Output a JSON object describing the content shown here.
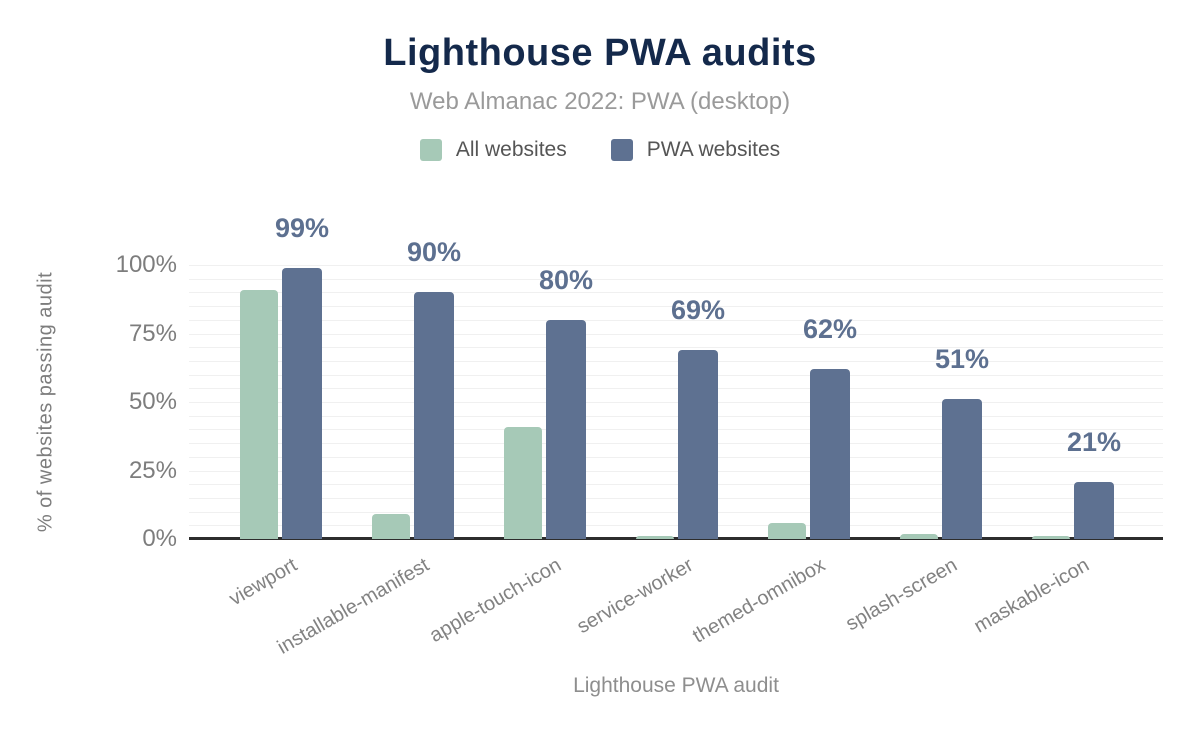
{
  "header": {
    "title": "Lighthouse PWA audits",
    "subtitle": "Web Almanac 2022: PWA (desktop)"
  },
  "chart_data": {
    "type": "bar",
    "title": "Lighthouse PWA audits",
    "subtitle": "Web Almanac 2022: PWA (desktop)",
    "xlabel": "Lighthouse PWA audit",
    "ylabel": "% of websites passing audit",
    "categories": [
      "viewport",
      "installable-manifest",
      "apple-touch-icon",
      "service-worker",
      "themed-omnibox",
      "splash-screen",
      "maskable-icon"
    ],
    "series": [
      {
        "name": "All websites",
        "color": "#a6c9b7",
        "values": [
          91,
          9,
          41,
          1,
          6,
          2,
          1
        ]
      },
      {
        "name": "PWA websites",
        "color": "#5e7191",
        "values": [
          99,
          90,
          80,
          69,
          62,
          51,
          21
        ],
        "data_labels": [
          "99%",
          "90%",
          "80%",
          "69%",
          "62%",
          "51%",
          "21%"
        ]
      }
    ],
    "ylim": [
      0,
      100
    ],
    "yticks": [
      0,
      25,
      50,
      75,
      100
    ],
    "ytick_labels": [
      "0%",
      "25%",
      "50%",
      "75%",
      "100%"
    ],
    "grid": "horizontal every 5%",
    "legend_position": "top-center",
    "colors": {
      "title": "#14294b",
      "subtitle": "#9a9a9a",
      "data_label": "#5d7090",
      "axis_line": "#2d2d2d",
      "gridline": "#f0f0f0",
      "tick_text": "#7d7d7d"
    }
  }
}
